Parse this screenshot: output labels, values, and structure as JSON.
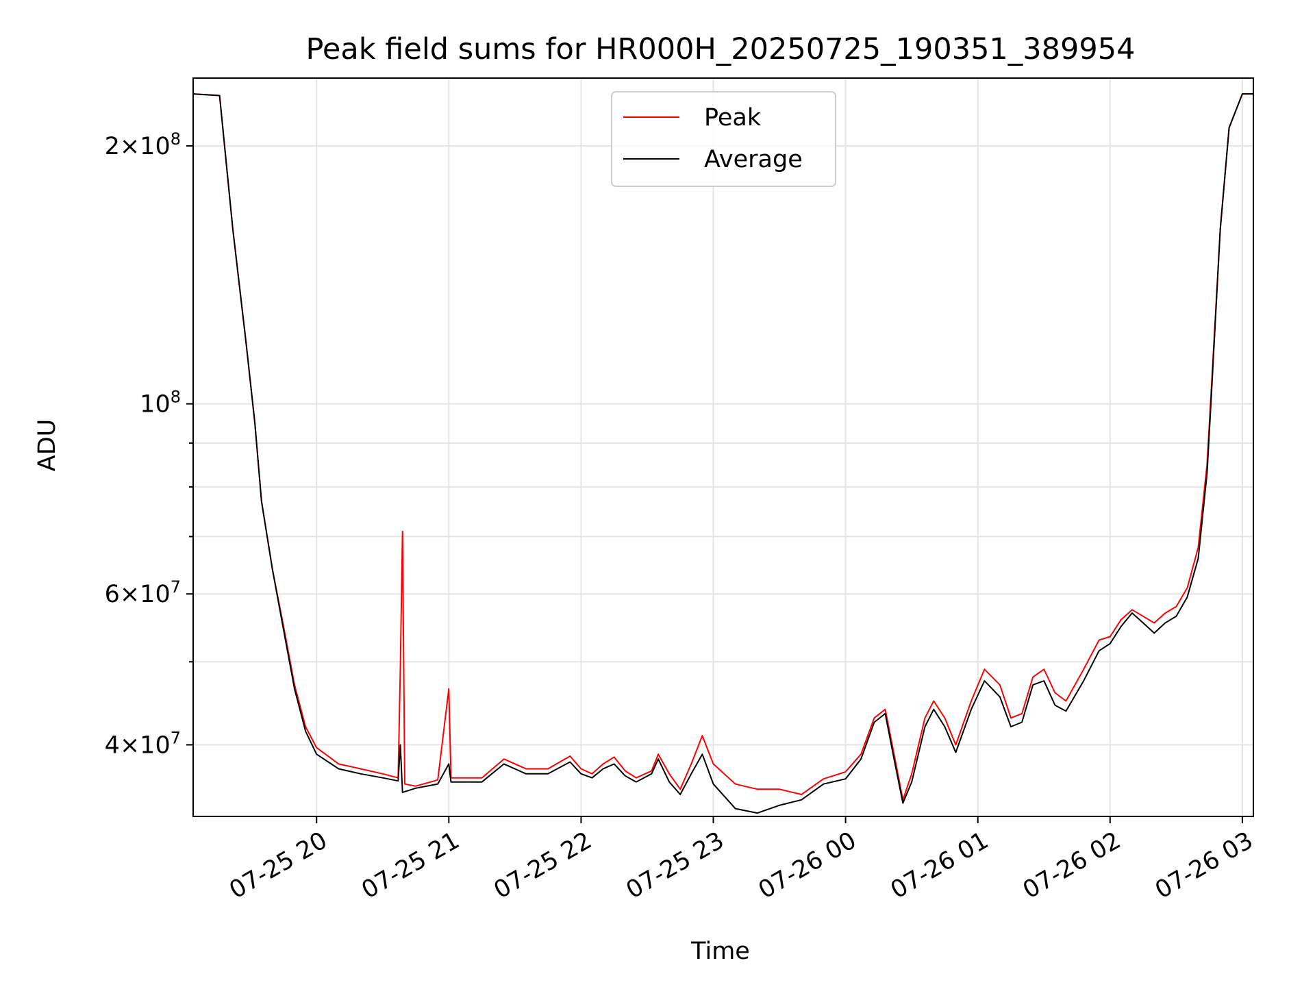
{
  "chart_data": {
    "type": "line",
    "title": "Peak field sums for HR000H_20250725_190351_389954",
    "xlabel": "Time",
    "ylabel": "ADU",
    "y_scale": "log",
    "xlim": [
      "2025-07-25T19:04",
      "2025-07-26T03:05"
    ],
    "ylim": [
      33000000.0,
      240000000.0
    ],
    "grid": true,
    "legend_position": "top-center",
    "x_tick_labels": [
      {
        "t": "2025-07-25T20:00",
        "label": "07-25 20"
      },
      {
        "t": "2025-07-25T21:00",
        "label": "07-25 21"
      },
      {
        "t": "2025-07-25T22:00",
        "label": "07-25 22"
      },
      {
        "t": "2025-07-25T23:00",
        "label": "07-25 23"
      },
      {
        "t": "2025-07-26T00:00",
        "label": "07-26 00"
      },
      {
        "t": "2025-07-26T01:00",
        "label": "07-26 01"
      },
      {
        "t": "2025-07-26T02:00",
        "label": "07-26 02"
      },
      {
        "t": "2025-07-26T03:00",
        "label": "07-26 03"
      }
    ],
    "y_tick_labels": [
      {
        "value": 200000000.0,
        "mantissa": "2",
        "exponent": "8"
      },
      {
        "value": 100000000.0,
        "mantissa": "",
        "exponent": "8"
      },
      {
        "value": 60000000.0,
        "mantissa": "6",
        "exponent": "7"
      },
      {
        "value": 40000000.0,
        "mantissa": "4",
        "exponent": "7"
      }
    ],
    "y_minor_ticks": [
      30000000.0,
      50000000.0,
      70000000.0,
      80000000.0,
      90000000.0
    ],
    "series": [
      {
        "name": "Peak",
        "color": "#ff0000",
        "points": [
          [
            "2025-07-25T19:04",
            230000000.0
          ],
          [
            "2025-07-25T19:16",
            229000000.0
          ],
          [
            "2025-07-25T19:22",
            160000000.0
          ],
          [
            "2025-07-25T19:28",
            118000000.0
          ],
          [
            "2025-07-25T19:32",
            95000000.0
          ],
          [
            "2025-07-25T19:35",
            77000000.0
          ],
          [
            "2025-07-25T19:40",
            64000000.0
          ],
          [
            "2025-07-25T19:45",
            55000000.0
          ],
          [
            "2025-07-25T19:50",
            47000000.0
          ],
          [
            "2025-07-25T19:55",
            42000000.0
          ],
          [
            "2025-07-25T20:00",
            39700000.0
          ],
          [
            "2025-07-25T20:10",
            38000000.0
          ],
          [
            "2025-07-25T20:20",
            37500000.0
          ],
          [
            "2025-07-25T20:30",
            37000000.0
          ],
          [
            "2025-07-25T20:37",
            36600000.0
          ],
          [
            "2025-07-25T20:38",
            49000000.0
          ],
          [
            "2025-07-25T20:39",
            71000000.0
          ],
          [
            "2025-07-25T20:40",
            36000000.0
          ],
          [
            "2025-07-25T20:45",
            35800000.0
          ],
          [
            "2025-07-25T20:55",
            36400000.0
          ],
          [
            "2025-07-25T21:00",
            46500000.0
          ],
          [
            "2025-07-25T21:01",
            36600000.0
          ],
          [
            "2025-07-25T21:15",
            36600000.0
          ],
          [
            "2025-07-25T21:25",
            38500000.0
          ],
          [
            "2025-07-25T21:35",
            37500000.0
          ],
          [
            "2025-07-25T21:45",
            37500000.0
          ],
          [
            "2025-07-25T21:55",
            38800000.0
          ],
          [
            "2025-07-25T22:00",
            37500000.0
          ],
          [
            "2025-07-25T22:05",
            37000000.0
          ],
          [
            "2025-07-25T22:10",
            38000000.0
          ],
          [
            "2025-07-25T22:15",
            38700000.0
          ],
          [
            "2025-07-25T22:20",
            37300000.0
          ],
          [
            "2025-07-25T22:25",
            36600000.0
          ],
          [
            "2025-07-25T22:32",
            37300000.0
          ],
          [
            "2025-07-25T22:35",
            39000000.0
          ],
          [
            "2025-07-25T22:40",
            37000000.0
          ],
          [
            "2025-07-25T22:45",
            35500000.0
          ],
          [
            "2025-07-25T22:50",
            38000000.0
          ],
          [
            "2025-07-25T22:55",
            41000000.0
          ],
          [
            "2025-07-25T23:00",
            38000000.0
          ],
          [
            "2025-07-25T23:10",
            36000000.0
          ],
          [
            "2025-07-25T23:20",
            35500000.0
          ],
          [
            "2025-07-25T23:30",
            35500000.0
          ],
          [
            "2025-07-25T23:40",
            35000000.0
          ],
          [
            "2025-07-25T23:50",
            36500000.0
          ],
          [
            "2025-07-26T00:00",
            37200000.0
          ],
          [
            "2025-07-26T00:07",
            39000000.0
          ],
          [
            "2025-07-26T00:13",
            43000000.0
          ],
          [
            "2025-07-26T00:18",
            44000000.0
          ],
          [
            "2025-07-26T00:22",
            39000000.0
          ],
          [
            "2025-07-26T00:26",
            34500000.0
          ],
          [
            "2025-07-26T00:30",
            37000000.0
          ],
          [
            "2025-07-26T00:36",
            43000000.0
          ],
          [
            "2025-07-26T00:40",
            45000000.0
          ],
          [
            "2025-07-26T00:45",
            43000000.0
          ],
          [
            "2025-07-26T00:50",
            40000000.0
          ],
          [
            "2025-07-26T00:57",
            45000000.0
          ],
          [
            "2025-07-26T01:03",
            49000000.0
          ],
          [
            "2025-07-26T01:10",
            47000000.0
          ],
          [
            "2025-07-26T01:15",
            43000000.0
          ],
          [
            "2025-07-26T01:20",
            43500000.0
          ],
          [
            "2025-07-26T01:25",
            48000000.0
          ],
          [
            "2025-07-26T01:30",
            49000000.0
          ],
          [
            "2025-07-26T01:35",
            46000000.0
          ],
          [
            "2025-07-26T01:40",
            45000000.0
          ],
          [
            "2025-07-26T01:48",
            49000000.0
          ],
          [
            "2025-07-26T01:55",
            53000000.0
          ],
          [
            "2025-07-26T02:00",
            53500000.0
          ],
          [
            "2025-07-26T02:05",
            56000000.0
          ],
          [
            "2025-07-26T02:10",
            57500000.0
          ],
          [
            "2025-07-26T02:15",
            56500000.0
          ],
          [
            "2025-07-26T02:20",
            55500000.0
          ],
          [
            "2025-07-26T02:25",
            57000000.0
          ],
          [
            "2025-07-26T02:30",
            58000000.0
          ],
          [
            "2025-07-26T02:35",
            61000000.0
          ],
          [
            "2025-07-26T02:40",
            68000000.0
          ],
          [
            "2025-07-26T02:44",
            85000000.0
          ],
          [
            "2025-07-26T02:46",
            105000000.0
          ],
          [
            "2025-07-26T02:50",
            160000000.0
          ],
          [
            "2025-07-26T02:54",
            210000000.0
          ],
          [
            "2025-07-26T03:00",
            230000000.0
          ],
          [
            "2025-07-26T03:05",
            230000000.0
          ]
        ]
      },
      {
        "name": "Average",
        "color": "#000000",
        "points": [
          [
            "2025-07-25T19:04",
            230000000.0
          ],
          [
            "2025-07-25T19:16",
            229000000.0
          ],
          [
            "2025-07-25T19:22",
            160000000.0
          ],
          [
            "2025-07-25T19:28",
            118000000.0
          ],
          [
            "2025-07-25T19:32",
            95000000.0
          ],
          [
            "2025-07-25T19:35",
            77000000.0
          ],
          [
            "2025-07-25T19:40",
            64000000.0
          ],
          [
            "2025-07-25T19:45",
            54500000.0
          ],
          [
            "2025-07-25T19:50",
            46500000.0
          ],
          [
            "2025-07-25T19:55",
            41500000.0
          ],
          [
            "2025-07-25T20:00",
            39000000.0
          ],
          [
            "2025-07-25T20:10",
            37500000.0
          ],
          [
            "2025-07-25T20:20",
            37000000.0
          ],
          [
            "2025-07-25T20:30",
            36600000.0
          ],
          [
            "2025-07-25T20:37",
            36300000.0
          ],
          [
            "2025-07-25T20:38",
            40000000.0
          ],
          [
            "2025-07-25T20:39",
            35200000.0
          ],
          [
            "2025-07-25T20:45",
            35600000.0
          ],
          [
            "2025-07-25T20:55",
            36000000.0
          ],
          [
            "2025-07-25T21:00",
            38000000.0
          ],
          [
            "2025-07-25T21:01",
            36200000.0
          ],
          [
            "2025-07-25T21:15",
            36200000.0
          ],
          [
            "2025-07-25T21:25",
            38000000.0
          ],
          [
            "2025-07-25T21:35",
            37000000.0
          ],
          [
            "2025-07-25T21:45",
            37000000.0
          ],
          [
            "2025-07-25T21:55",
            38200000.0
          ],
          [
            "2025-07-25T22:00",
            37000000.0
          ],
          [
            "2025-07-25T22:05",
            36600000.0
          ],
          [
            "2025-07-25T22:10",
            37500000.0
          ],
          [
            "2025-07-25T22:15",
            38000000.0
          ],
          [
            "2025-07-25T22:20",
            36800000.0
          ],
          [
            "2025-07-25T22:25",
            36200000.0
          ],
          [
            "2025-07-25T22:32",
            37000000.0
          ],
          [
            "2025-07-25T22:35",
            38500000.0
          ],
          [
            "2025-07-25T22:40",
            36200000.0
          ],
          [
            "2025-07-25T22:45",
            35000000.0
          ],
          [
            "2025-07-25T22:50",
            37000000.0
          ],
          [
            "2025-07-25T22:55",
            39000000.0
          ],
          [
            "2025-07-25T23:00",
            36000000.0
          ],
          [
            "2025-07-25T23:10",
            33700000.0
          ],
          [
            "2025-07-25T23:20",
            33300000.0
          ],
          [
            "2025-07-25T23:30",
            34000000.0
          ],
          [
            "2025-07-25T23:40",
            34500000.0
          ],
          [
            "2025-07-25T23:50",
            36000000.0
          ],
          [
            "2025-07-26T00:00",
            36500000.0
          ],
          [
            "2025-07-26T00:07",
            38500000.0
          ],
          [
            "2025-07-26T00:13",
            42500000.0
          ],
          [
            "2025-07-26T00:18",
            43500000.0
          ],
          [
            "2025-07-26T00:22",
            38500000.0
          ],
          [
            "2025-07-26T00:26",
            34200000.0
          ],
          [
            "2025-07-26T00:30",
            36200000.0
          ],
          [
            "2025-07-26T00:36",
            42000000.0
          ],
          [
            "2025-07-26T00:40",
            44000000.0
          ],
          [
            "2025-07-26T00:45",
            42000000.0
          ],
          [
            "2025-07-26T00:50",
            39200000.0
          ],
          [
            "2025-07-26T00:57",
            44000000.0
          ],
          [
            "2025-07-26T01:03",
            47500000.0
          ],
          [
            "2025-07-26T01:10",
            45500000.0
          ],
          [
            "2025-07-26T01:15",
            42000000.0
          ],
          [
            "2025-07-26T01:20",
            42500000.0
          ],
          [
            "2025-07-26T01:25",
            47000000.0
          ],
          [
            "2025-07-26T01:30",
            47500000.0
          ],
          [
            "2025-07-26T01:35",
            44500000.0
          ],
          [
            "2025-07-26T01:40",
            43800000.0
          ],
          [
            "2025-07-26T01:48",
            47500000.0
          ],
          [
            "2025-07-26T01:55",
            51500000.0
          ],
          [
            "2025-07-26T02:00",
            52500000.0
          ],
          [
            "2025-07-26T02:05",
            55000000.0
          ],
          [
            "2025-07-26T02:10",
            57000000.0
          ],
          [
            "2025-07-26T02:15",
            55500000.0
          ],
          [
            "2025-07-26T02:20",
            54000000.0
          ],
          [
            "2025-07-26T02:25",
            55500000.0
          ],
          [
            "2025-07-26T02:30",
            56500000.0
          ],
          [
            "2025-07-26T02:35",
            59500000.0
          ],
          [
            "2025-07-26T02:40",
            66000000.0
          ],
          [
            "2025-07-26T02:44",
            83000000.0
          ],
          [
            "2025-07-26T02:46",
            103000000.0
          ],
          [
            "2025-07-26T02:50",
            160000000.0
          ],
          [
            "2025-07-26T02:54",
            210000000.0
          ],
          [
            "2025-07-26T03:00",
            230000000.0
          ],
          [
            "2025-07-26T03:05",
            230000000.0
          ]
        ]
      }
    ]
  }
}
